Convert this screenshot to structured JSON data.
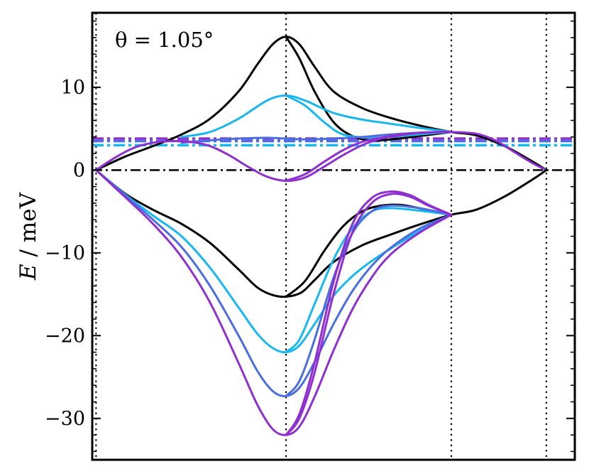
{
  "chart_data": {
    "type": "line",
    "title": "",
    "annotation": "θ = 1.05°",
    "ylabel_var": "E",
    "ylabel_unit": " / meV",
    "ylim": [
      -35,
      19
    ],
    "xlim": [
      -0.02,
      2.52
    ],
    "grid": false,
    "legend": "none",
    "yticks": [
      {
        "value": 10,
        "label": "10"
      },
      {
        "value": 0,
        "label": "0"
      },
      {
        "value": -10,
        "label": "−10"
      },
      {
        "value": -20,
        "label": "−20"
      },
      {
        "value": -30,
        "label": "−30"
      }
    ],
    "high_symmetry_points": [
      0,
      1,
      1.87,
      2.37
    ],
    "zero_line": 0,
    "colors": {
      "black": "#000000",
      "light_blue": "#17b8f0",
      "blue": "#4a6ee0",
      "violet": "#8f2fd0"
    },
    "series": [
      {
        "color_key": "black",
        "kind": "band",
        "x": [
          0,
          0.15,
          0.3,
          0.45,
          0.6,
          0.75,
          0.85,
          0.93,
          1.0,
          1.07,
          1.15,
          1.25,
          1.4,
          1.55,
          1.7,
          1.87,
          2.0,
          2.15,
          2.3,
          2.37
        ],
        "y": [
          0,
          1.6,
          2.9,
          4.3,
          6.2,
          9.5,
          12.8,
          15.2,
          16.1,
          15.2,
          12.5,
          9.5,
          7.5,
          6.3,
          5.4,
          4.6,
          4.2,
          2.9,
          1.0,
          0
        ]
      },
      {
        "color_key": "black",
        "kind": "band",
        "x": [
          1.0,
          1.07,
          1.15,
          1.25,
          1.35,
          1.45,
          1.55,
          1.7,
          1.87
        ],
        "y": [
          16.1,
          13.5,
          9.5,
          5.8,
          4.1,
          3.6,
          3.7,
          4.1,
          4.6
        ]
      },
      {
        "color_key": "light_blue",
        "kind": "band",
        "x": [
          0.45,
          0.6,
          0.75,
          0.9,
          1.0,
          1.1,
          1.25,
          1.4,
          1.55,
          1.7,
          1.87
        ],
        "y": [
          4.0,
          4.6,
          6.2,
          8.4,
          9.0,
          8.4,
          6.9,
          6.1,
          5.6,
          5.1,
          4.6
        ]
      },
      {
        "color_key": "light_blue",
        "kind": "band",
        "x": [
          1.0,
          1.1,
          1.2,
          1.3,
          1.45,
          1.6,
          1.75,
          1.87
        ],
        "y": [
          9.0,
          7.8,
          5.8,
          4.3,
          3.9,
          4.1,
          4.4,
          4.6
        ]
      },
      {
        "color_key": "blue",
        "kind": "band",
        "x": [
          0.45,
          0.6,
          0.75,
          0.9,
          1.0,
          1.1,
          1.25,
          1.4,
          1.55,
          1.7,
          1.87
        ],
        "y": [
          3.3,
          3.6,
          3.8,
          3.9,
          3.8,
          3.7,
          3.8,
          4.0,
          4.3,
          4.5,
          4.6
        ]
      },
      {
        "color_key": "violet",
        "kind": "band",
        "x": [
          0,
          0.1,
          0.2,
          0.3,
          0.4,
          0.5,
          0.6,
          0.7,
          0.8,
          0.9,
          1.0,
          1.1,
          1.2,
          1.3,
          1.4,
          1.5,
          1.6,
          1.7,
          1.8,
          1.87,
          2.0,
          2.1,
          2.2,
          2.3,
          2.37
        ],
        "y": [
          0,
          1.5,
          2.7,
          3.3,
          3.5,
          3.4,
          2.9,
          1.8,
          0.4,
          -0.8,
          -1.3,
          -0.9,
          0.4,
          1.8,
          3.0,
          3.8,
          4.2,
          4.5,
          4.6,
          4.6,
          4.4,
          3.6,
          2.2,
          0.8,
          0
        ]
      },
      {
        "color_key": "violet",
        "kind": "band",
        "x": [
          1.0,
          1.1,
          1.2,
          1.3,
          1.4,
          1.5,
          1.6,
          1.7,
          1.8,
          1.87
        ],
        "y": [
          -1.3,
          -0.5,
          1.0,
          2.4,
          3.4,
          3.9,
          4.3,
          4.5,
          4.6,
          4.6
        ]
      },
      {
        "color_key": "black",
        "kind": "band",
        "x": [
          0,
          0.15,
          0.3,
          0.45,
          0.6,
          0.75,
          0.85,
          0.93,
          1.0,
          1.08,
          1.15,
          1.25,
          1.4,
          1.55,
          1.7,
          1.87,
          2.0,
          2.15,
          2.3,
          2.37
        ],
        "y": [
          0,
          -2.8,
          -4.8,
          -6.5,
          -8.8,
          -12.0,
          -14.2,
          -15.1,
          -15.3,
          -14.8,
          -13.3,
          -11.1,
          -9.1,
          -7.8,
          -6.6,
          -5.4,
          -4.8,
          -3.2,
          -1.1,
          0
        ]
      },
      {
        "color_key": "black",
        "kind": "band",
        "x": [
          1.0,
          1.1,
          1.2,
          1.3,
          1.4,
          1.5,
          1.6,
          1.7,
          1.87
        ],
        "y": [
          -15.3,
          -13.4,
          -9.8,
          -6.8,
          -5.0,
          -4.3,
          -4.2,
          -4.6,
          -5.4
        ]
      },
      {
        "color_key": "light_blue",
        "kind": "band",
        "x": [
          0,
          0.15,
          0.3,
          0.45,
          0.6,
          0.75,
          0.85,
          0.93,
          1.0,
          1.07,
          1.15,
          1.25,
          1.35,
          1.45,
          1.55,
          1.7,
          1.87
        ],
        "y": [
          0,
          -2.9,
          -5.5,
          -8.0,
          -11.8,
          -16.6,
          -19.8,
          -21.5,
          -22.0,
          -21.2,
          -18.6,
          -15.2,
          -12.8,
          -11.0,
          -9.5,
          -7.4,
          -5.4
        ]
      },
      {
        "color_key": "light_blue",
        "kind": "band",
        "x": [
          1.0,
          1.07,
          1.15,
          1.25,
          1.35,
          1.45,
          1.55,
          1.7,
          1.87
        ],
        "y": [
          -22.0,
          -20.5,
          -16.2,
          -10.8,
          -7.0,
          -5.0,
          -4.6,
          -4.9,
          -5.4
        ]
      },
      {
        "color_key": "blue",
        "kind": "band",
        "x": [
          0,
          0.15,
          0.3,
          0.45,
          0.6,
          0.75,
          0.85,
          0.93,
          1.0,
          1.07,
          1.15,
          1.25,
          1.35,
          1.45,
          1.55,
          1.7,
          1.87
        ],
        "y": [
          0,
          -3.0,
          -6.0,
          -9.3,
          -14.0,
          -20.0,
          -24.3,
          -26.7,
          -27.3,
          -26.3,
          -23.2,
          -18.6,
          -14.6,
          -11.6,
          -9.4,
          -7.1,
          -5.4
        ]
      },
      {
        "color_key": "blue",
        "kind": "band",
        "x": [
          1.0,
          1.07,
          1.15,
          1.25,
          1.35,
          1.45,
          1.55,
          1.7,
          1.87
        ],
        "y": [
          -27.3,
          -25.5,
          -20.5,
          -13.0,
          -7.6,
          -5.0,
          -4.3,
          -4.6,
          -5.4
        ]
      },
      {
        "color_key": "violet",
        "kind": "band",
        "x": [
          0,
          0.15,
          0.3,
          0.45,
          0.6,
          0.75,
          0.85,
          0.93,
          1.0,
          1.07,
          1.15,
          1.25,
          1.35,
          1.45,
          1.55,
          1.7,
          1.87
        ],
        "y": [
          0,
          -3.2,
          -6.5,
          -10.5,
          -16.0,
          -23.3,
          -28.4,
          -31.3,
          -32.0,
          -31.0,
          -27.4,
          -21.8,
          -16.8,
          -13.0,
          -10.2,
          -7.6,
          -5.4
        ]
      },
      {
        "color_key": "violet",
        "kind": "band",
        "x": [
          1.0,
          1.07,
          1.15,
          1.25,
          1.35,
          1.45,
          1.55,
          1.65,
          1.75,
          1.87
        ],
        "y": [
          -32.0,
          -29.5,
          -23.3,
          -13.5,
          -6.5,
          -3.4,
          -2.6,
          -3.0,
          -4.2,
          -5.4
        ]
      },
      {
        "color_key": "violet",
        "kind": "band",
        "x": [
          1.0,
          1.07,
          1.15,
          1.25,
          1.35,
          1.45,
          1.55,
          1.65,
          1.75,
          1.87
        ],
        "y": [
          -32.0,
          -30.0,
          -24.5,
          -15.0,
          -7.5,
          -4.0,
          -2.9,
          -3.2,
          -4.3,
          -5.4
        ]
      }
    ],
    "fermi_levels": [
      {
        "color_key": "light_blue",
        "value": 3.0
      },
      {
        "color_key": "blue",
        "value": 3.5
      },
      {
        "color_key": "violet",
        "value": 3.8
      }
    ]
  }
}
